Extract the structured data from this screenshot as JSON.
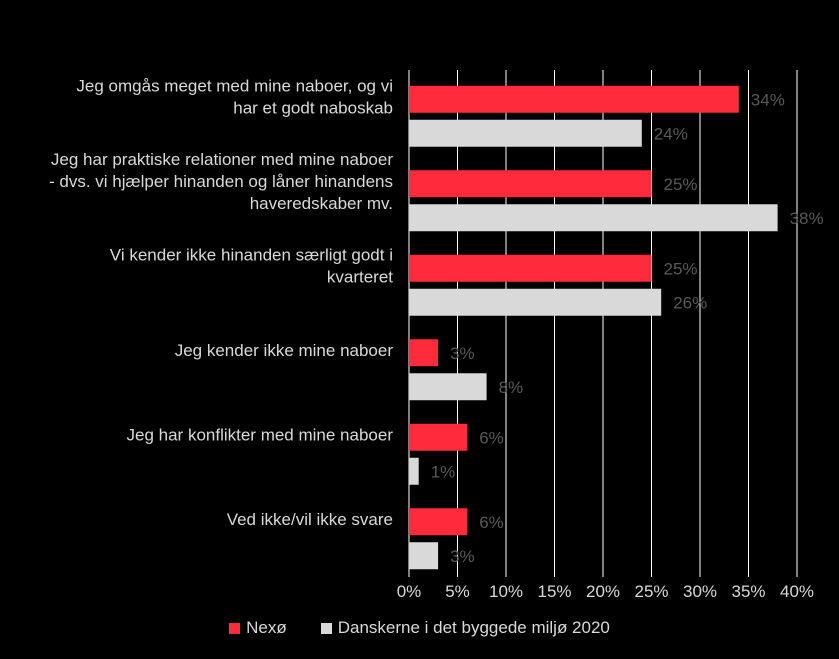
{
  "chart_data": {
    "type": "bar",
    "orientation": "horizontal",
    "categories": [
      [
        "Jeg omgås meget med mine naboer, og vi",
        "har et godt naboskab"
      ],
      [
        "Jeg har praktiske relationer med mine naboer",
        "- dvs. vi hjælper hinanden og låner hinandens",
        "haveredskaber mv."
      ],
      [
        "Vi kender ikke hinanden særligt godt i",
        "kvarteret"
      ],
      [
        "Jeg kender ikke mine naboer"
      ],
      [
        "Jeg har konflikter med mine naboer"
      ],
      [
        "Ved ikke/vil ikke svare"
      ]
    ],
    "series": [
      {
        "name": "Nexø",
        "color": "#ff2a3a",
        "values": [
          34,
          25,
          25,
          3,
          6,
          6
        ]
      },
      {
        "name": "Danskerne i det byggede miljø 2020",
        "color": "#d9d9d9",
        "values": [
          24,
          38,
          26,
          8,
          1,
          3
        ]
      }
    ],
    "value_suffix": "%",
    "xlim": [
      0,
      40
    ],
    "xticks": [
      "0%",
      "5%",
      "10%",
      "15%",
      "20%",
      "25%",
      "30%",
      "35%",
      "40%"
    ],
    "grid": true,
    "legend_position": "bottom",
    "background": "#000000",
    "gridline_color": "#ffffff",
    "data_label_color": "#595959"
  }
}
